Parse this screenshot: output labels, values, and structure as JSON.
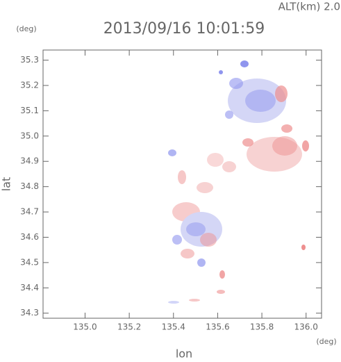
{
  "chart_data": {
    "type": "scatter",
    "title": "2013/09/16 10:01:59",
    "subtitle": "ALT(km)  2.0",
    "x_label": "lon",
    "y_label": "lat",
    "x_unit": "(deg)",
    "y_unit": "(deg)",
    "xlim": [
      134.81,
      136.07
    ],
    "ylim": [
      34.28,
      35.34
    ],
    "xticks": [
      {
        "value": 135,
        "label": "135.0"
      },
      135.2,
      135.4,
      135.6,
      135.8,
      {
        "value": 136,
        "label": "136.0"
      }
    ],
    "yticks": [
      34.3,
      34.4,
      34.5,
      34.6,
      34.7,
      34.8,
      34.9,
      {
        "value": 35,
        "label": "35.0"
      },
      35.1,
      35.2,
      35.3
    ]
  }
}
